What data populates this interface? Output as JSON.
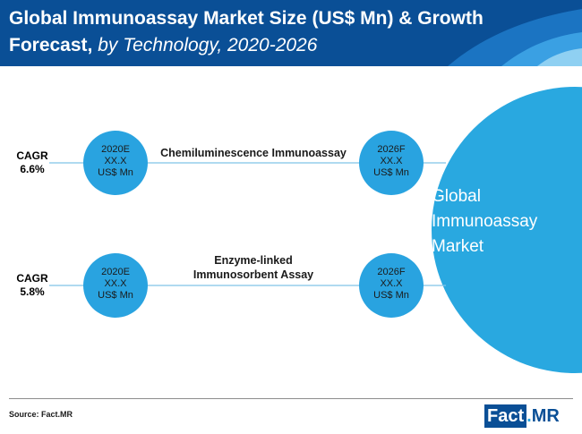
{
  "header": {
    "title_main": "Global Immunoassay Market Size (US$ Mn) & Growth Forecast,",
    "title_sub": "by Technology, 2020-2026"
  },
  "market": {
    "line1": "Global",
    "line2": "Immunoassay",
    "line3": "Market"
  },
  "rows": [
    {
      "cagr_label": "CAGR",
      "cagr_value": "6.6%",
      "tech_line1": "Chemiluminescence Immunoassay",
      "tech_line2": "",
      "start": {
        "year": "2020E",
        "value": "XX.X",
        "unit": "US$ Mn"
      },
      "end": {
        "year": "2026F",
        "value": "XX.X",
        "unit": "US$ Mn"
      }
    },
    {
      "cagr_label": "CAGR",
      "cagr_value": "5.8%",
      "tech_line1": "Enzyme-linked",
      "tech_line2": "Immunosorbent Assay",
      "start": {
        "year": "2020E",
        "value": "XX.X",
        "unit": "US$ Mn"
      },
      "end": {
        "year": "2026F",
        "value": "XX.X",
        "unit": "US$ Mn"
      }
    }
  ],
  "footer": {
    "source": "Source: Fact.MR",
    "logo_fact": "Fact",
    "logo_dot": ".",
    "logo_mr": "MR"
  },
  "colors": {
    "header_bg": "#0a4f96",
    "circle": "#29a3e0",
    "market_circle": "#29a8e0",
    "line": "#7fc4e8"
  }
}
